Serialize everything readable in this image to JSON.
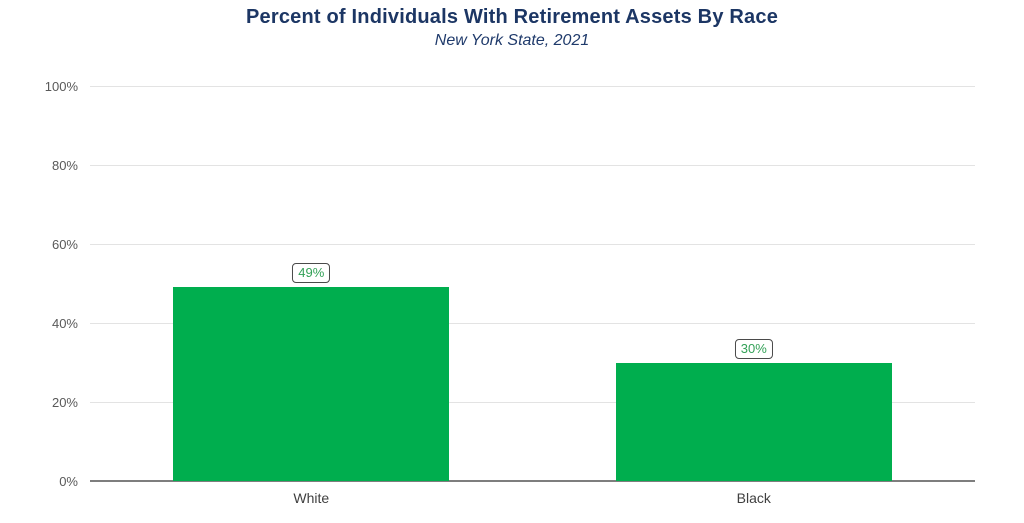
{
  "chart_data": {
    "type": "bar",
    "title": "Percent of Individuals With Retirement Assets By Race",
    "subtitle": "New York State, 2021",
    "categories": [
      "White",
      "Black"
    ],
    "values": [
      49,
      30
    ],
    "value_labels": [
      "49%",
      "30%"
    ],
    "xlabel": "",
    "ylabel": "",
    "ylim": [
      0,
      100
    ],
    "yticks": [
      0,
      20,
      40,
      60,
      80,
      100
    ],
    "ytick_labels": [
      "0%",
      "20%",
      "40%",
      "60%",
      "80%",
      "100%"
    ],
    "grid": true,
    "legend": false,
    "colors": {
      "bar": "#00AE4E",
      "value_label_text": "#33A157",
      "title": "#1C3664",
      "subtitle": "#1F3A6B",
      "axis_text": "#595959",
      "gridline": "#E3E3E3",
      "axis_line": "#7E7E7E"
    }
  }
}
